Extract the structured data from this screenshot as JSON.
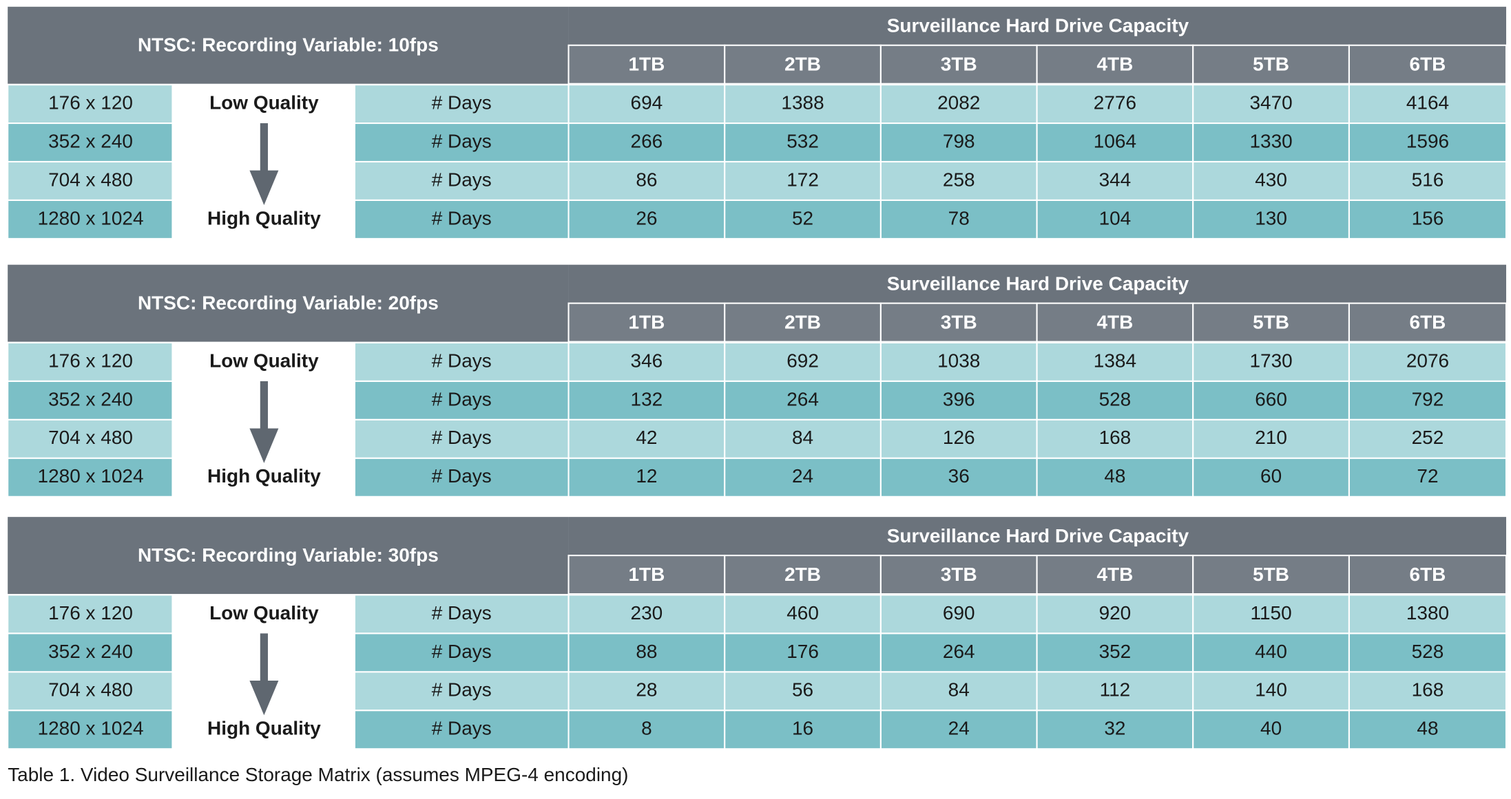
{
  "tables": [
    {
      "title": "NTSC: Recording Variable: 10fps",
      "group_header": "Surveillance Hard Drive Capacity",
      "columns": [
        "1TB",
        "2TB",
        "3TB",
        "4TB",
        "5TB",
        "6TB"
      ],
      "rows": [
        {
          "resolution": "176 x 120",
          "quality": "Low Quality",
          "metric": "# Days",
          "values": [
            694,
            1388,
            2082,
            2776,
            3470,
            4164
          ]
        },
        {
          "resolution": "352 x 240",
          "metric": "# Days",
          "values": [
            266,
            532,
            798,
            1064,
            1330,
            1596
          ]
        },
        {
          "resolution": "704 x 480",
          "metric": "# Days",
          "values": [
            86,
            172,
            258,
            344,
            430,
            516
          ]
        },
        {
          "resolution": "1280 x 1024",
          "quality": "High Quality",
          "metric": "# Days",
          "values": [
            26,
            52,
            78,
            104,
            130,
            156
          ]
        }
      ]
    },
    {
      "title": "NTSC: Recording Variable: 20fps",
      "group_header": "Surveillance Hard Drive Capacity",
      "columns": [
        "1TB",
        "2TB",
        "3TB",
        "4TB",
        "5TB",
        "6TB"
      ],
      "rows": [
        {
          "resolution": "176 x 120",
          "quality": "Low Quality",
          "metric": "# Days",
          "values": [
            346,
            692,
            1038,
            1384,
            1730,
            2076
          ]
        },
        {
          "resolution": "352 x 240",
          "metric": "# Days",
          "values": [
            132,
            264,
            396,
            528,
            660,
            792
          ]
        },
        {
          "resolution": "704 x 480",
          "metric": "# Days",
          "values": [
            42,
            84,
            126,
            168,
            210,
            252
          ]
        },
        {
          "resolution": "1280 x 1024",
          "quality": "High Quality",
          "metric": "# Days",
          "values": [
            12,
            24,
            36,
            48,
            60,
            72
          ]
        }
      ]
    },
    {
      "title": "NTSC: Recording Variable: 30fps",
      "group_header": "Surveillance Hard Drive Capacity",
      "columns": [
        "1TB",
        "2TB",
        "3TB",
        "4TB",
        "5TB",
        "6TB"
      ],
      "rows": [
        {
          "resolution": "176 x 120",
          "quality": "Low Quality",
          "metric": "# Days",
          "values": [
            230,
            460,
            690,
            920,
            1150,
            1380
          ]
        },
        {
          "resolution": "352 x 240",
          "metric": "# Days",
          "values": [
            88,
            176,
            264,
            352,
            440,
            528
          ]
        },
        {
          "resolution": "704 x 480",
          "metric": "# Days",
          "values": [
            28,
            56,
            84,
            112,
            140,
            168
          ]
        },
        {
          "resolution": "1280 x 1024",
          "quality": "High Quality",
          "metric": "# Days",
          "values": [
            8,
            16,
            24,
            32,
            40,
            48
          ]
        }
      ]
    }
  ],
  "caption": "Table 1. Video Surveillance Storage Matrix (assumes MPEG-4 encoding)"
}
